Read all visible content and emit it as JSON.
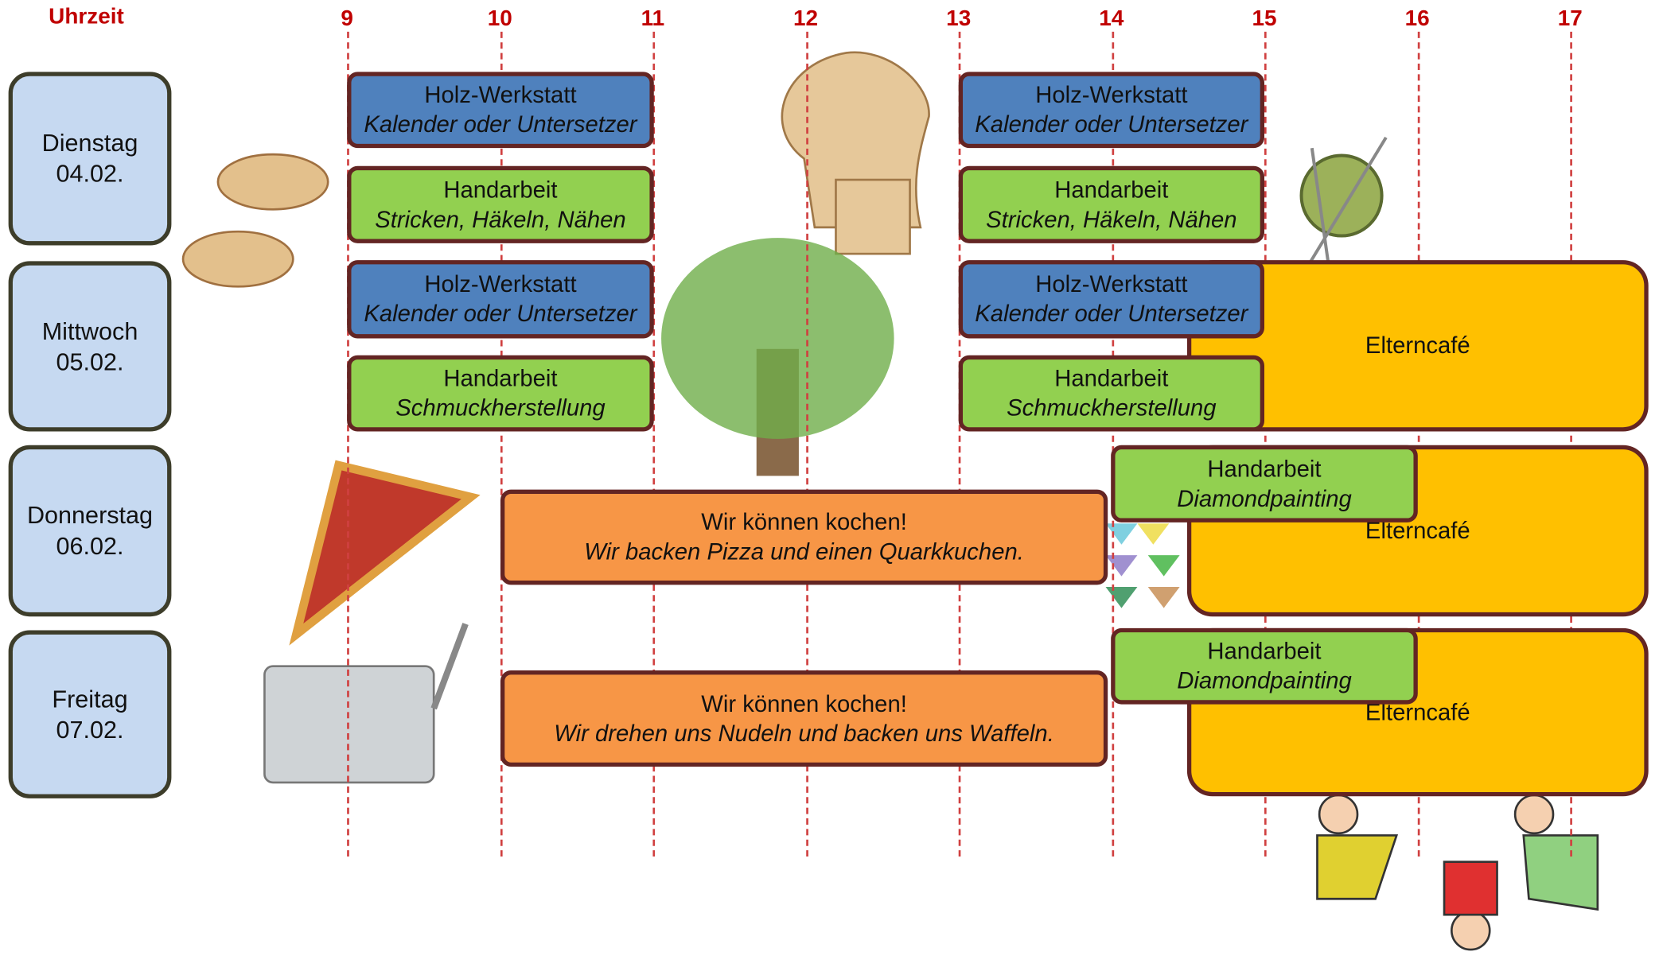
{
  "header": {
    "time_label": "Uhrzeit",
    "hours": [
      "9",
      "10",
      "11",
      "12",
      "13",
      "14",
      "15",
      "16",
      "17"
    ]
  },
  "days": [
    {
      "name": "Dienstag",
      "date": "04.02."
    },
    {
      "name": "Mittwoch",
      "date": "05.02."
    },
    {
      "name": "Donnerstag",
      "date": "06.02."
    },
    {
      "name": "Freitag",
      "date": "07.02."
    }
  ],
  "events": [
    {
      "title": "Holz-Werkstatt",
      "subtitle": "Kalender oder Untersetzer"
    },
    {
      "title": "Handarbeit",
      "subtitle": "Stricken, Häkeln, Nähen"
    },
    {
      "title": "Holz-Werkstatt",
      "subtitle": "Kalender oder Untersetzer"
    },
    {
      "title": "Handarbeit",
      "subtitle": "Stricken, Häkeln, Nähen"
    },
    {
      "title": "Holz-Werkstatt",
      "subtitle": "Kalender oder Untersetzer"
    },
    {
      "title": "Handarbeit",
      "subtitle": "Schmuckherstellung"
    },
    {
      "title": "Elterncafé"
    },
    {
      "title": "Holz-Werkstatt",
      "subtitle": "Kalender oder Untersetzer"
    },
    {
      "title": "Handarbeit",
      "subtitle": "Schmuckherstellung"
    },
    {
      "title": "Wir können kochen!",
      "subtitle": "Wir backen Pizza und einen Quarkkuchen."
    },
    {
      "title": "Elterncafé"
    },
    {
      "title": "Handarbeit",
      "subtitle": "Diamondpainting"
    },
    {
      "title": "Wir können kochen!",
      "subtitle": "Wir drehen uns Nudeln und backen uns Waffeln."
    },
    {
      "title": "Elterncafé"
    },
    {
      "title": "Handarbeit",
      "subtitle": "Diamondpainting"
    }
  ]
}
